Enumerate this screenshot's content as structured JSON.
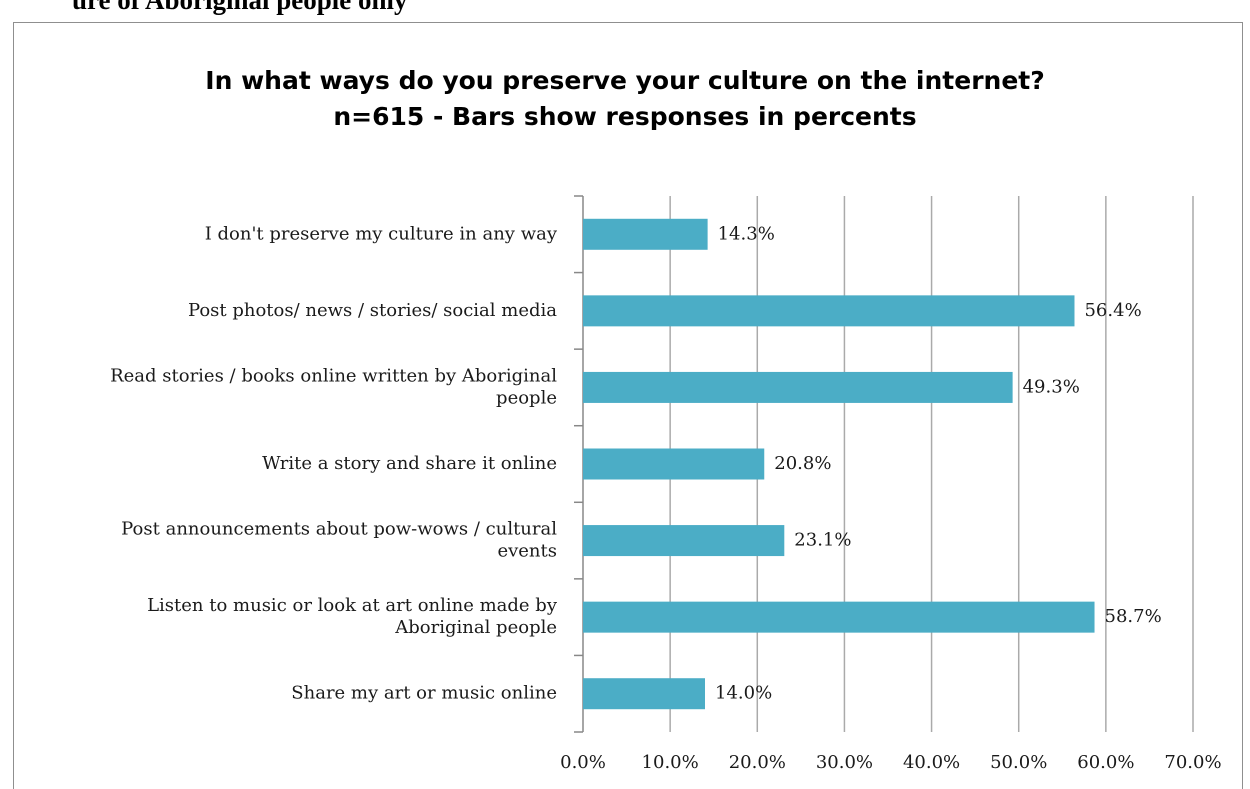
{
  "page": {
    "heading_fragment": "ure of Aboriginal people only"
  },
  "chart_data": {
    "type": "bar",
    "orientation": "horizontal",
    "title_lines": [
      "In what ways do you preserve your culture on the internet?",
      "n=615 - Bars show responses in percents"
    ],
    "categories": [
      "I don't preserve my culture in any way",
      "Post photos/ news / stories/ social media",
      "Read stories / books online written by Aboriginal people",
      "Write a story and share it online",
      "Post announcements about pow-wows / cultural events",
      "Listen to music or look at art online made by Aboriginal people",
      "Share my art or music online"
    ],
    "category_label_lines": [
      [
        "I don't preserve my culture in any way"
      ],
      [
        "Post photos/ news / stories/ social media"
      ],
      [
        "Read stories / books online written by Aboriginal",
        "people"
      ],
      [
        "Write a story and share it online"
      ],
      [
        "Post announcements about pow-wows / cultural",
        "events"
      ],
      [
        "Listen to music or look at art online made by",
        "Aboriginal people"
      ],
      [
        "Share my art or music online"
      ]
    ],
    "values": [
      14.3,
      56.4,
      49.3,
      20.8,
      23.1,
      58.7,
      14.0
    ],
    "data_labels": [
      "14.3%",
      "56.4%",
      "49.3%",
      "20.8%",
      "23.1%",
      "58.7%",
      "14.0%"
    ],
    "x_ticks": [
      0,
      10,
      20,
      30,
      40,
      50,
      60,
      70
    ],
    "x_tick_labels": [
      "0.0%",
      "10.0%",
      "20.0%",
      "30.0%",
      "40.0%",
      "50.0%",
      "60.0%",
      "70.0%"
    ],
    "xlim": [
      0,
      70
    ],
    "grid": "vertical",
    "bar_color": "#4badc6",
    "grid_color": "#aaaaaa",
    "axis_color": "#888888",
    "text_color": "#1a1a1a"
  }
}
